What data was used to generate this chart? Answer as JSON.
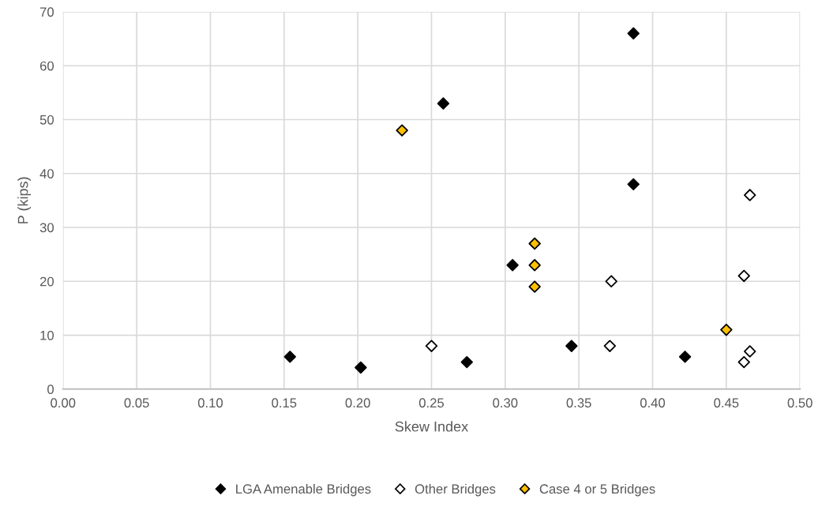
{
  "chart_data": {
    "type": "scatter",
    "xlabel": "Skew Index",
    "ylabel": "P (kips)",
    "xlim": [
      0,
      0.5
    ],
    "xticks": [
      {
        "value": 0,
        "label": "0.00"
      },
      {
        "value": 0.05,
        "label": "0.05"
      },
      {
        "value": 0.1,
        "label": "0.10"
      },
      {
        "value": 0.15,
        "label": "0.15"
      },
      {
        "value": 0.2,
        "label": "0.20"
      },
      {
        "value": 0.25,
        "label": "0.25"
      },
      {
        "value": 0.3,
        "label": "0.30"
      },
      {
        "value": 0.35,
        "label": "0.35"
      },
      {
        "value": 0.4,
        "label": "0.40"
      },
      {
        "value": 0.45,
        "label": "0.45"
      },
      {
        "value": 0.5,
        "label": "0.50"
      }
    ],
    "ylim": [
      0,
      70
    ],
    "yticks": [
      0,
      10,
      20,
      30,
      40,
      50,
      60,
      70
    ],
    "grid": true,
    "legend": "bottom",
    "marker": "diamond",
    "series": [
      {
        "name": "LGA Amenable Bridges",
        "color": "#000000",
        "x": [
          0.154,
          0.202,
          0.258,
          0.274,
          0.305,
          0.345,
          0.387,
          0.387,
          0.422
        ],
        "values": [
          6,
          4,
          53,
          5,
          23,
          8,
          66,
          38,
          6
        ]
      },
      {
        "name": "Other Bridges",
        "color": "#ffffff",
        "x": [
          0.25,
          0.371,
          0.372,
          0.462,
          0.462,
          0.466,
          0.466
        ],
        "values": [
          8,
          8,
          20,
          21,
          5,
          36,
          7
        ]
      },
      {
        "name": "Case 4 or 5 Bridges",
        "color": "#ffc000",
        "x": [
          0.23,
          0.32,
          0.32,
          0.32,
          0.45
        ],
        "values": [
          48,
          27,
          23,
          19,
          11
        ]
      }
    ]
  }
}
